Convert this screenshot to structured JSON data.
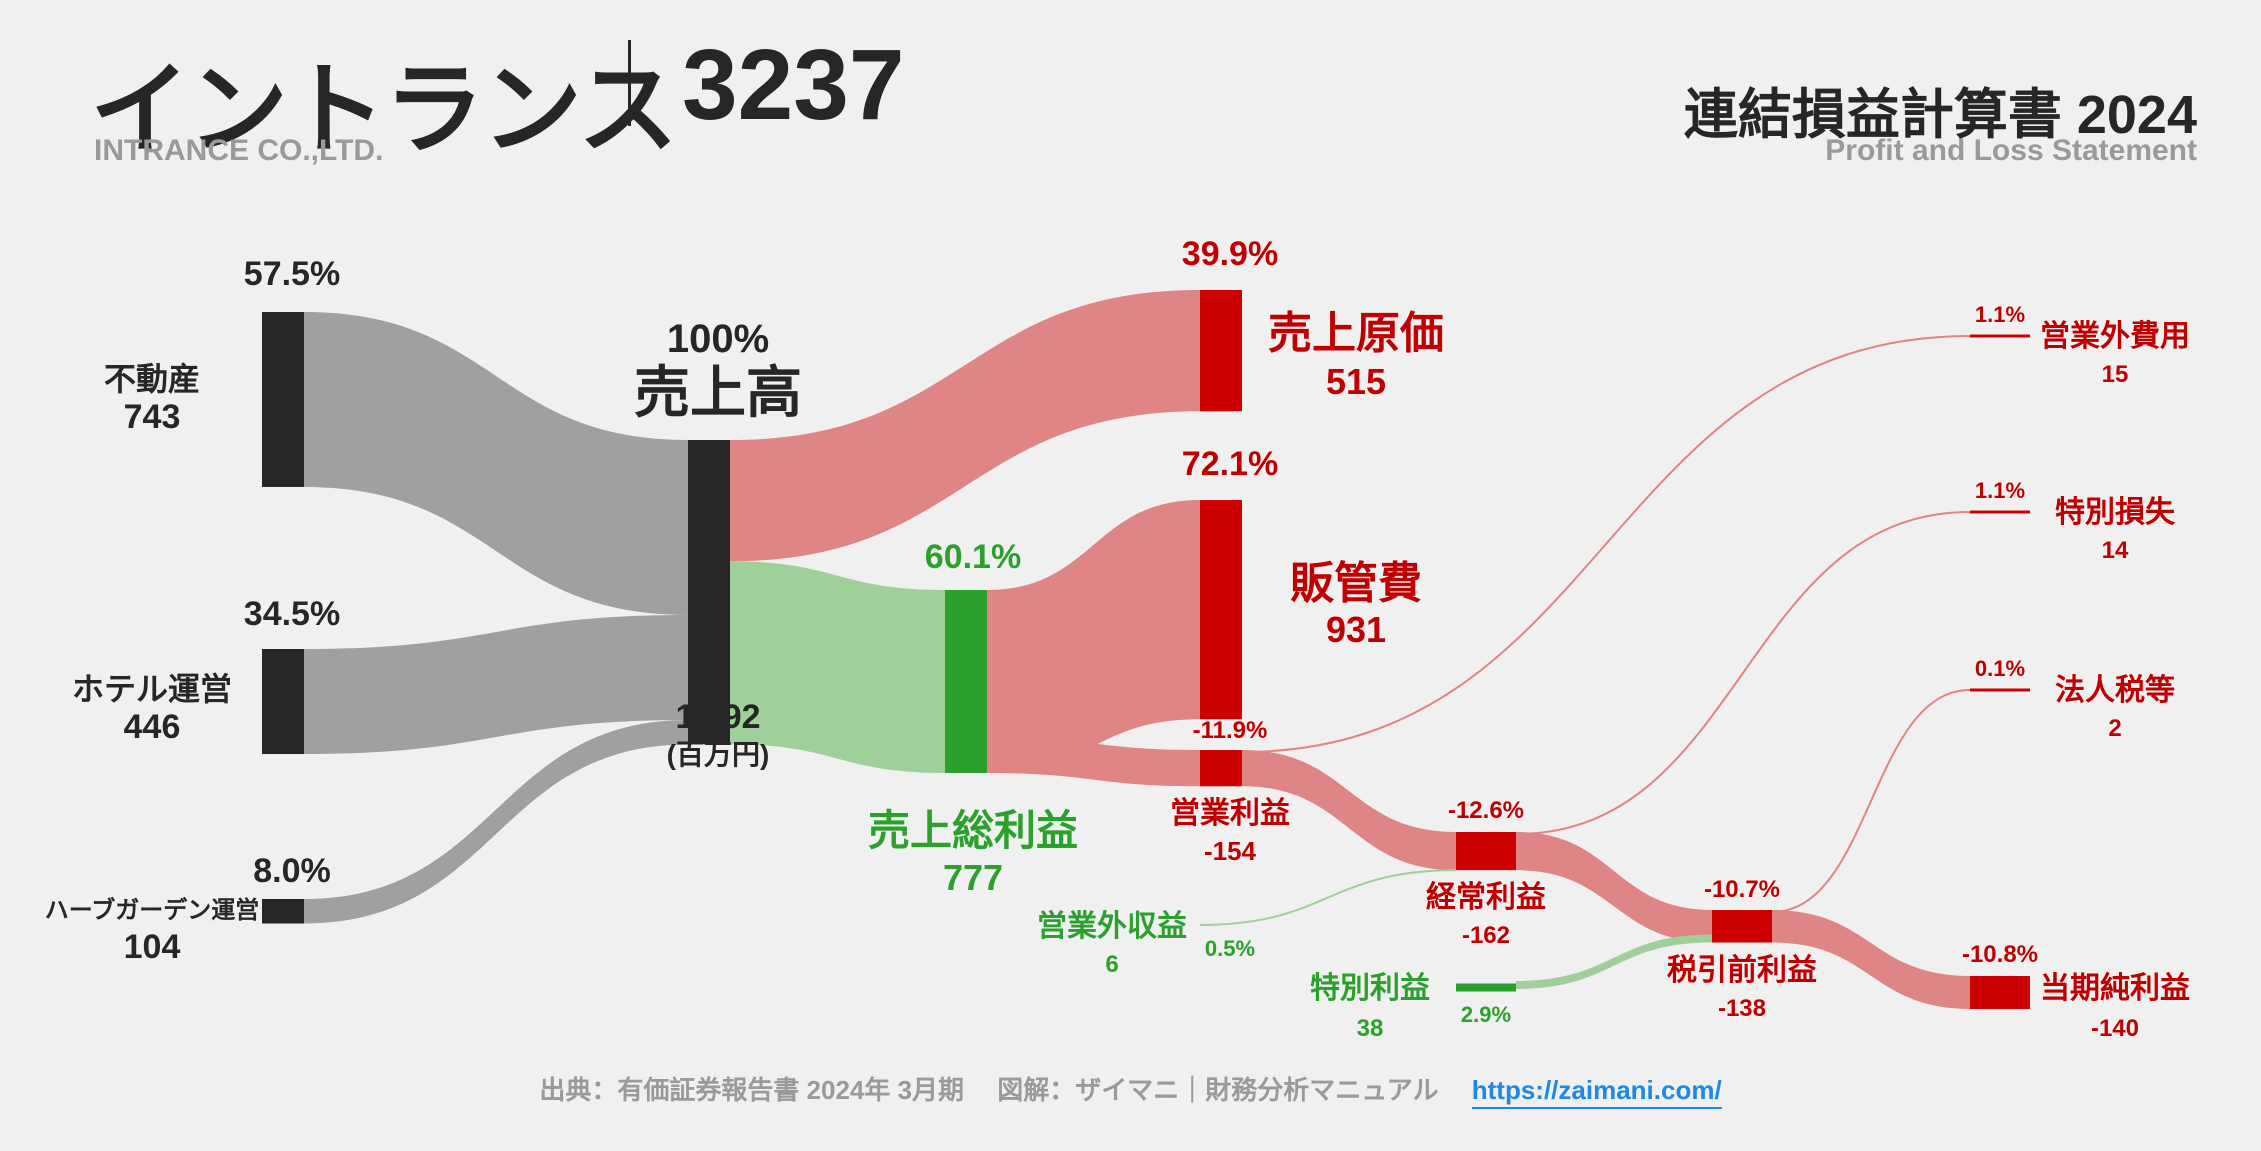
{
  "header": {
    "company_name": "イントランス",
    "company_code": "3237",
    "company_name_en": "INTRANCE CO.,LTD.",
    "statement_title": "連結損益計算書 2024",
    "statement_title_en": "Profit and Loss Statement"
  },
  "footer": {
    "source": "出典：有価証券報告書 2024年 3月期　 図解：ザイマニ｜財務分析マニュアル",
    "link": "https://zaimani.com/"
  },
  "colors": {
    "dark": "#262626",
    "gray_flow": "#a0a0a0",
    "red": "#cc0000",
    "red_label": "#c00000",
    "red_flow": "#e08585",
    "green": "#2ca02c",
    "green_label": "#2ca02c",
    "green_flow": "#9fd09a",
    "link": "#1e88e5"
  },
  "chart_data": {
    "type": "sankey",
    "unit": "(百万円)",
    "nodes": [
      {
        "id": "fudosan",
        "label": "不動産",
        "value": "743",
        "pct": "57.5%"
      },
      {
        "id": "hotel",
        "label": "ホテル運営",
        "value": "446",
        "pct": "34.5%"
      },
      {
        "id": "herb",
        "label": "ハーブガーデン運営",
        "value": "104",
        "pct": "8.0%"
      },
      {
        "id": "revenue",
        "label": "売上高",
        "value": "1,292",
        "pct": "100%"
      },
      {
        "id": "cogs",
        "label": "売上原価",
        "value": "515",
        "pct": "39.9%"
      },
      {
        "id": "gross",
        "label": "売上総利益",
        "value": "777",
        "pct": "60.1%"
      },
      {
        "id": "sga",
        "label": "販管費",
        "value": "931",
        "pct": "72.1%"
      },
      {
        "id": "op",
        "label": "営業利益",
        "value": "-154",
        "pct": "-11.9%"
      },
      {
        "id": "nonop_inc",
        "label": "営業外収益",
        "value": "6",
        "pct": "0.5%"
      },
      {
        "id": "nonop_exp",
        "label": "営業外費用",
        "value": "15",
        "pct": "1.1%"
      },
      {
        "id": "ordinary",
        "label": "経常利益",
        "value": "-162",
        "pct": "-12.6%"
      },
      {
        "id": "sp_gain",
        "label": "特別利益",
        "value": "38",
        "pct": "2.9%"
      },
      {
        "id": "sp_loss",
        "label": "特別損失",
        "value": "14",
        "pct": "1.1%"
      },
      {
        "id": "pretax",
        "label": "税引前利益",
        "value": "-138",
        "pct": "-10.7%"
      },
      {
        "id": "tax",
        "label": "法人税等",
        "value": "2",
        "pct": "0.1%"
      },
      {
        "id": "net",
        "label": "当期純利益",
        "value": "-140",
        "pct": "-10.8%"
      }
    ],
    "links": [
      {
        "source": "fudosan",
        "target": "revenue",
        "value": 743
      },
      {
        "source": "hotel",
        "target": "revenue",
        "value": 446
      },
      {
        "source": "herb",
        "target": "revenue",
        "value": 104
      },
      {
        "source": "revenue",
        "target": "cogs",
        "value": 515
      },
      {
        "source": "revenue",
        "target": "gross",
        "value": 777
      },
      {
        "source": "gross",
        "target": "sga",
        "value": 931
      },
      {
        "source": "gross",
        "target": "op",
        "value": 154
      },
      {
        "source": "op",
        "target": "nonop_exp",
        "value": 15
      },
      {
        "source": "op",
        "target": "ordinary",
        "value": 162
      },
      {
        "source": "nonop_inc",
        "target": "ordinary",
        "value": 6
      },
      {
        "source": "ordinary",
        "target": "pretax",
        "value": 138
      },
      {
        "source": "ordinary",
        "target": "sp_loss",
        "value": 14
      },
      {
        "source": "sp_gain",
        "target": "pretax",
        "value": 38
      },
      {
        "source": "pretax",
        "target": "tax",
        "value": 2
      },
      {
        "source": "pretax",
        "target": "net",
        "value": 140
      }
    ]
  }
}
